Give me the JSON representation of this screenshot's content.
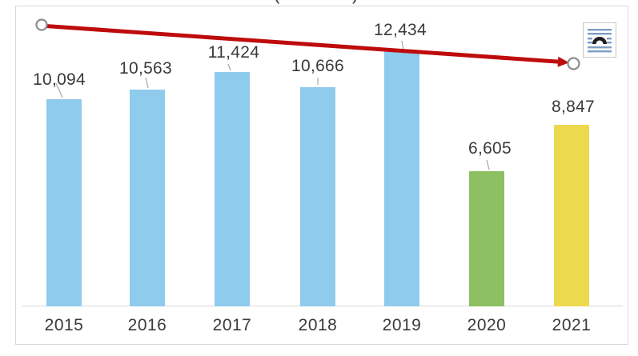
{
  "page": {
    "background": "#FFFFFF"
  },
  "clipped_title": {
    "left_fragment": "(",
    "right_fragment": ")"
  },
  "chart_data": {
    "type": "bar",
    "title": "",
    "xlabel": "",
    "ylabel": "",
    "categories": [
      "2015",
      "2016",
      "2017",
      "2018",
      "2019",
      "2020",
      "2021"
    ],
    "values": [
      10094,
      10563,
      11424,
      10666,
      12434,
      6605,
      8847
    ],
    "value_labels": [
      "10,094",
      "10,563",
      "11,424",
      "10,666",
      "12,434",
      "6,605",
      "8,847"
    ],
    "bar_colors": [
      "#8FCBEC",
      "#8FCBEC",
      "#8FCBEC",
      "#8FCBEC",
      "#8FCBEC",
      "#8CC063",
      "#EDD94E"
    ],
    "ylim": [
      0,
      12800
    ],
    "grid": false,
    "legend": false,
    "data_label_color": "#3A3A3A",
    "axis_label_color": "#3A3A3A",
    "axis_line_color": "#D9D9D9",
    "leader_line_color": "#A6A6A6",
    "has_leader_lines": [
      true,
      true,
      true,
      true,
      true,
      true,
      false
    ]
  },
  "trend_arrow": {
    "description": "red straight arrow annotation sloping down from 2015 label area to 2021 label area",
    "color": "#BE0C0C",
    "selected": true,
    "handle_fill": "#FFFFFF",
    "handle_stroke": "#8C8C8C"
  },
  "toolbar_icon": {
    "name": "layout-options",
    "line_color": "#7D9DC5",
    "arch_color": "#1F1F1F"
  }
}
